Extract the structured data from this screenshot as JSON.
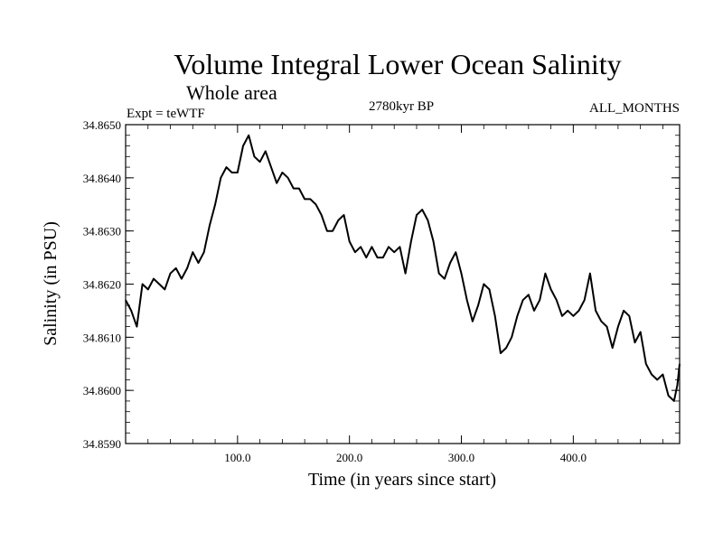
{
  "chart_data": {
    "type": "line",
    "title": "Volume Integral Lower Ocean Salinity",
    "subtitle": "Whole area",
    "left_label": "Expt = teWTF",
    "center_label": "2780kyr BP",
    "right_label": "ALL_MONTHS",
    "xlabel": "Time (in years since start)",
    "ylabel": "Salinity (in PSU)",
    "xlim": [
      0,
      495
    ],
    "ylim": [
      34.859,
      34.865
    ],
    "xticks": [
      100,
      200,
      300,
      400
    ],
    "xtick_labels": [
      "100.0",
      "200.0",
      "300.0",
      "400.0"
    ],
    "yticks": [
      34.859,
      34.86,
      34.861,
      34.862,
      34.863,
      34.864,
      34.865
    ],
    "ytick_labels": [
      "34.8590",
      "34.8600",
      "34.8610",
      "34.8620",
      "34.8630",
      "34.8640",
      "34.8650"
    ],
    "grid": false,
    "series": [
      {
        "name": "Salinity",
        "color": "#000000",
        "x": [
          0,
          5,
          10,
          15,
          20,
          25,
          30,
          35,
          40,
          45,
          50,
          55,
          60,
          65,
          70,
          75,
          80,
          85,
          90,
          95,
          100,
          105,
          110,
          115,
          120,
          125,
          130,
          135,
          140,
          145,
          150,
          155,
          160,
          165,
          170,
          175,
          180,
          185,
          190,
          195,
          200,
          205,
          210,
          215,
          220,
          225,
          230,
          235,
          240,
          245,
          250,
          255,
          260,
          265,
          270,
          275,
          280,
          285,
          290,
          295,
          300,
          305,
          310,
          315,
          320,
          325,
          330,
          335,
          340,
          345,
          350,
          355,
          360,
          365,
          370,
          375,
          380,
          385,
          390,
          395,
          400,
          405,
          410,
          415,
          420,
          425,
          430,
          435,
          440,
          445,
          450,
          455,
          460,
          465,
          470,
          475,
          480,
          485,
          490,
          493,
          495
        ],
        "values": [
          34.8617,
          34.8615,
          34.8612,
          34.862,
          34.8619,
          34.8621,
          34.862,
          34.8619,
          34.8622,
          34.8623,
          34.8621,
          34.8623,
          34.8626,
          34.8624,
          34.8626,
          34.8631,
          34.8635,
          34.864,
          34.8642,
          34.8641,
          34.8641,
          34.8646,
          34.8648,
          34.8644,
          34.8643,
          34.8645,
          34.8642,
          34.8639,
          34.8641,
          34.864,
          34.8638,
          34.8638,
          34.8636,
          34.8636,
          34.8635,
          34.8633,
          34.863,
          34.863,
          34.8632,
          34.8633,
          34.8628,
          34.8626,
          34.8627,
          34.8625,
          34.8627,
          34.8625,
          34.8625,
          34.8627,
          34.8626,
          34.8627,
          34.8622,
          34.8628,
          34.8633,
          34.8634,
          34.8632,
          34.8628,
          34.8622,
          34.8621,
          34.8624,
          34.8626,
          34.8622,
          34.8617,
          34.8613,
          34.8616,
          34.862,
          34.8619,
          34.8614,
          34.8607,
          34.8608,
          34.861,
          34.8614,
          34.8617,
          34.8618,
          34.8615,
          34.8617,
          34.8622,
          34.8619,
          34.8617,
          34.8614,
          34.8615,
          34.8614,
          34.8615,
          34.8617,
          34.8622,
          34.8615,
          34.8613,
          34.8612,
          34.8608,
          34.8612,
          34.8615,
          34.8614,
          34.8609,
          34.8611,
          34.8605,
          34.8603,
          34.8602,
          34.8603,
          34.8599,
          34.8598,
          34.8601,
          34.8605
        ]
      }
    ]
  }
}
